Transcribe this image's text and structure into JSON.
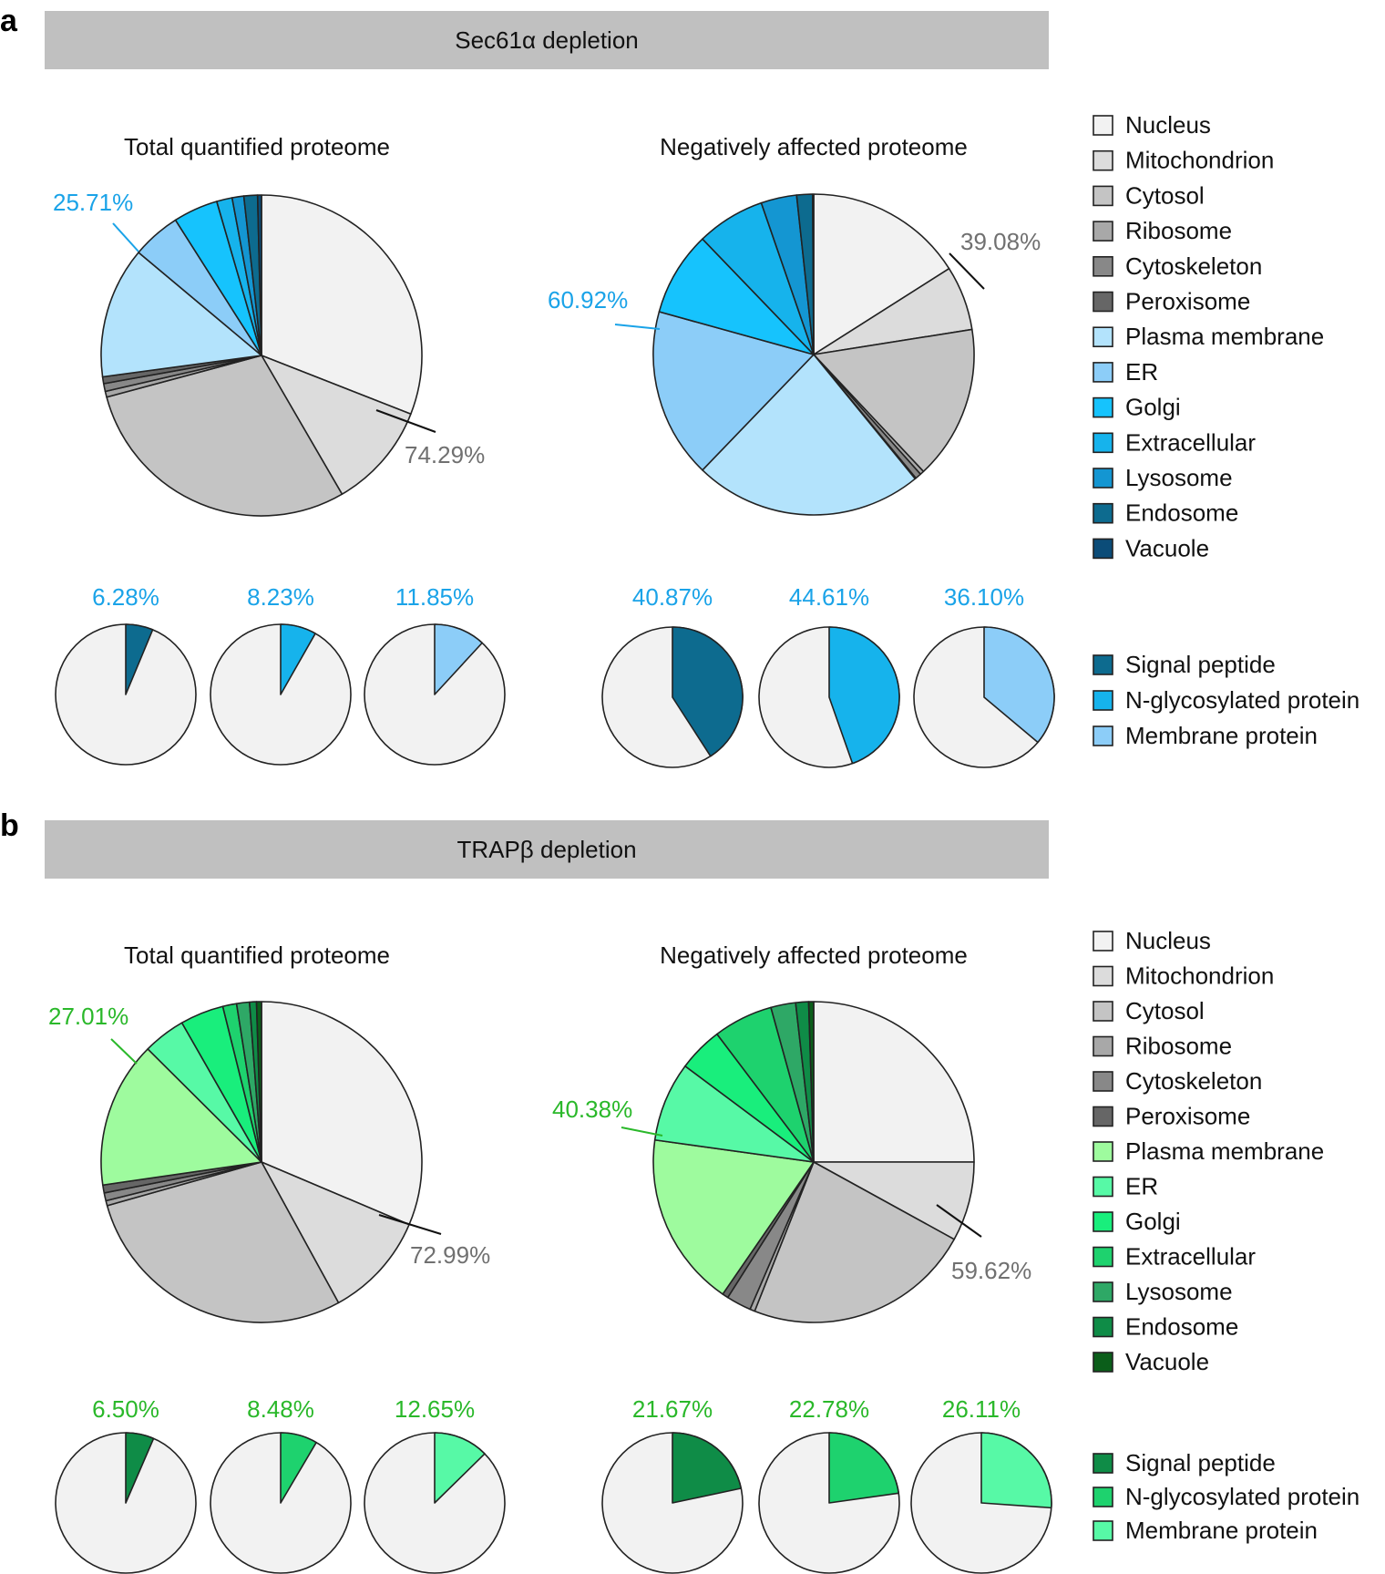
{
  "colors": {
    "grey_palette": [
      "#f2f2f2",
      "#dcdcdc",
      "#c4c4c4",
      "#a8a8a8",
      "#888888",
      "#666666"
    ],
    "blue_palette": [
      "#b3e3fc",
      "#8ccdf8",
      "#16c3fd",
      "#16b3ec",
      "#1496d2",
      "#0d6b8f",
      "#0b4c78"
    ],
    "green_palette": [
      "#9efb9e",
      "#57f9a6",
      "#19ee7c",
      "#1ed26e",
      "#2ea866",
      "#0f8c47",
      "#0b5e1a"
    ],
    "blue_text": "#1aa3e8",
    "green_text": "#2ab82a",
    "grey_text": "#707070",
    "banner": "#c0c0c0",
    "background": "#ffffff"
  },
  "panels": [
    {
      "letter": "a",
      "banner": "Sec61α depletion",
      "theme": "blue",
      "legend_main": [
        "Nucleus",
        "Mitochondrion",
        "Cytosol",
        "Ribosome",
        "Cytoskeleton",
        "Peroxisome",
        "Plasma membrane",
        "ER",
        "Golgi",
        "Extracellular",
        "Lysosome",
        "Endosome",
        "Vacuole"
      ],
      "legend_features": [
        "Signal peptide",
        "N-glycosylated protein",
        "Membrane protein"
      ]
    },
    {
      "letter": "b",
      "banner": "TRAPβ depletion",
      "theme": "green",
      "legend_main": [
        "Nucleus",
        "Mitochondrion",
        "Cytosol",
        "Ribosome",
        "Cytoskeleton",
        "Peroxisome",
        "Plasma membrane",
        "ER",
        "Golgi",
        "Extracellular",
        "Lysosome",
        "Endosome",
        "Vacuole"
      ],
      "legend_features": [
        "Signal peptide",
        "N-glycosylated protein",
        "Membrane protein"
      ]
    }
  ],
  "chart_data": [
    {
      "type": "pie",
      "panel": "a",
      "title": "Total quantified proteome",
      "categories": [
        "Nucleus",
        "Mitochondrion",
        "Cytosol",
        "Ribosome",
        "Cytoskeleton",
        "Peroxisome",
        "Plasma membrane",
        "ER",
        "Golgi",
        "Extracellular",
        "Lysosome",
        "Endosome",
        "Vacuole"
      ],
      "values": [
        31.6,
        10.9,
        29.8,
        0.6,
        0.8,
        0.7,
        13.5,
        5.0,
        4.6,
        1.6,
        1.2,
        1.4,
        0.4
      ],
      "annotations": {
        "membrane_fraction": "25.71%",
        "nonmembrane_fraction": "74.29%"
      }
    },
    {
      "type": "pie",
      "panel": "a",
      "title": "Negatively affected proteome",
      "categories": [
        "Nucleus",
        "Mitochondrion",
        "Cytosol",
        "Ribosome",
        "Cytoskeleton",
        "Peroxisome",
        "Plasma membrane",
        "ER",
        "Golgi",
        "Extracellular",
        "Lysosome",
        "Endosome",
        "Vacuole"
      ],
      "values": [
        16.0,
        6.5,
        15.5,
        0.4,
        0.6,
        0.1,
        23.1,
        17.1,
        8.5,
        6.9,
        3.6,
        1.6,
        0.1
      ],
      "annotations": {
        "membrane_fraction": "60.92%",
        "nonmembrane_fraction": "39.08%"
      }
    },
    {
      "type": "pie",
      "panel": "b",
      "title": "Total quantified proteome",
      "categories": [
        "Nucleus",
        "Mitochondrion",
        "Cytosol",
        "Ribosome",
        "Cytoskeleton",
        "Peroxisome",
        "Plasma membrane",
        "ER",
        "Golgi",
        "Extracellular",
        "Lysosome",
        "Endosome",
        "Vacuole"
      ],
      "values": [
        31.5,
        10.7,
        28.7,
        0.5,
        0.8,
        0.8,
        14.8,
        4.3,
        4.4,
        1.4,
        1.3,
        0.7,
        0.5
      ],
      "annotations": {
        "membrane_fraction": "27.01%",
        "nonmembrane_fraction": "72.99%"
      }
    },
    {
      "type": "pie",
      "panel": "b",
      "title": "Negatively affected proteome",
      "categories": [
        "Nucleus",
        "Mitochondrion",
        "Cytosol",
        "Ribosome",
        "Cytoskeleton",
        "Peroxisome",
        "Plasma membrane",
        "ER",
        "Golgi",
        "Extracellular",
        "Lysosome",
        "Endosome",
        "Vacuole"
      ],
      "values": [
        25.0,
        8.0,
        23.0,
        0.5,
        2.5,
        0.6,
        17.6,
        8.0,
        4.5,
        6.0,
        2.5,
        1.3,
        0.5
      ],
      "annotations": {
        "membrane_fraction": "40.38%",
        "nonmembrane_fraction": "59.62%"
      }
    },
    {
      "type": "pie",
      "panel": "a",
      "group": "Total quantified proteome",
      "feature_pies": [
        {
          "feature": "Signal peptide",
          "percent": 6.28,
          "label": "6.28%"
        },
        {
          "feature": "N-glycosylated protein",
          "percent": 8.23,
          "label": "8.23%"
        },
        {
          "feature": "Membrane protein",
          "percent": 11.85,
          "label": "11.85%"
        }
      ]
    },
    {
      "type": "pie",
      "panel": "a",
      "group": "Negatively affected proteome",
      "feature_pies": [
        {
          "feature": "Signal peptide",
          "percent": 40.87,
          "label": "40.87%"
        },
        {
          "feature": "N-glycosylated protein",
          "percent": 44.61,
          "label": "44.61%"
        },
        {
          "feature": "Membrane protein",
          "percent": 36.1,
          "label": "36.10%"
        }
      ]
    },
    {
      "type": "pie",
      "panel": "b",
      "group": "Total quantified proteome",
      "feature_pies": [
        {
          "feature": "Signal peptide",
          "percent": 6.5,
          "label": "6.50%"
        },
        {
          "feature": "N-glycosylated protein",
          "percent": 8.48,
          "label": "8.48%"
        },
        {
          "feature": "Membrane protein",
          "percent": 12.65,
          "label": "12.65%"
        }
      ]
    },
    {
      "type": "pie",
      "panel": "b",
      "group": "Negatively affected proteome",
      "feature_pies": [
        {
          "feature": "Signal peptide",
          "percent": 21.67,
          "label": "21.67%"
        },
        {
          "feature": "N-glycosylated protein",
          "percent": 22.78,
          "label": "22.78%"
        },
        {
          "feature": "Membrane protein",
          "percent": 26.11,
          "label": "26.11%"
        }
      ]
    }
  ]
}
